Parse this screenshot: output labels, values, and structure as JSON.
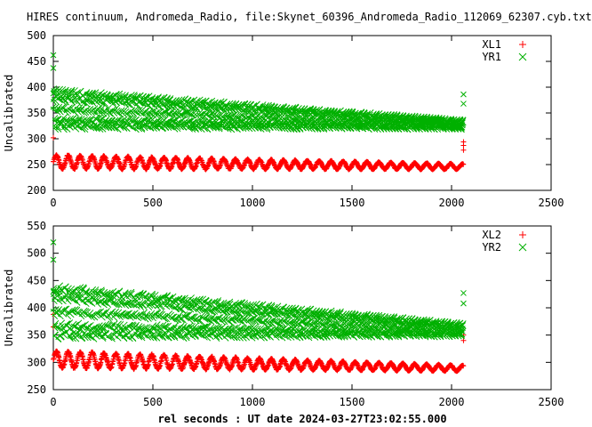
{
  "title": "HIRES continuum, Andromeda_Radio, file:Skynet_60396_Andromeda_Radio_112069_62307.cyb.txt",
  "chart_data": [
    {
      "type": "scatter",
      "ylabel": "Uncalibrated",
      "xlabel": "",
      "xlim": [
        0,
        2500
      ],
      "ylim": [
        200,
        500
      ],
      "xticks": [
        "0",
        "500",
        "1000",
        "1500",
        "2000",
        "2500"
      ],
      "yticks": [
        "200",
        "250",
        "300",
        "350",
        "400",
        "450",
        "500"
      ],
      "xtick_values": [
        0,
        500,
        1000,
        1500,
        2000,
        2500
      ],
      "ytick_values": [
        200,
        250,
        300,
        350,
        400,
        450,
        500
      ],
      "legend_position": "top-right",
      "series": [
        {
          "name": "XL1",
          "marker": "+",
          "color": "#ff0000",
          "x_range": [
            0,
            2060
          ],
          "oscillation_period": 60,
          "center_start": 255,
          "center_end": 246,
          "amplitude_start": 13,
          "amplitude_end": 5,
          "outliers": [
            [
              0,
              302
            ],
            [
              2060,
              294
            ],
            [
              2060,
              287
            ],
            [
              2060,
              278
            ]
          ]
        },
        {
          "name": "YR1",
          "marker": "x",
          "color": "#00b000",
          "x_range": [
            0,
            2060
          ],
          "oscillation_period": 15,
          "center_start": 355,
          "center_end": 325,
          "amplitude_start": 35,
          "amplitude_end": 7,
          "outliers": [
            [
              0,
              462
            ],
            [
              0,
              437
            ],
            [
              0,
              388
            ],
            [
              2060,
              386
            ],
            [
              2060,
              368
            ]
          ]
        }
      ]
    },
    {
      "type": "scatter",
      "ylabel": "Uncalibrated",
      "xlabel": "rel seconds : UT date 2024-03-27T23:02:55.000",
      "xlim": [
        0,
        2500
      ],
      "ylim": [
        250,
        550
      ],
      "xticks": [
        "0",
        "500",
        "1000",
        "1500",
        "2000",
        "2500"
      ],
      "yticks": [
        "250",
        "300",
        "350",
        "400",
        "450",
        "500",
        "550"
      ],
      "xtick_values": [
        0,
        500,
        1000,
        1500,
        2000,
        2500
      ],
      "ytick_values": [
        250,
        300,
        350,
        400,
        450,
        500,
        550
      ],
      "legend_position": "top-right",
      "series": [
        {
          "name": "XL2",
          "marker": "+",
          "color": "#ff0000",
          "x_range": [
            0,
            2060
          ],
          "oscillation_period": 60,
          "center_start": 305,
          "center_end": 289,
          "amplitude_start": 15,
          "amplitude_end": 5,
          "outliers": [
            [
              0,
              388
            ],
            [
              0,
              365
            ],
            [
              2060,
              350
            ],
            [
              2060,
              340
            ]
          ]
        },
        {
          "name": "YR2",
          "marker": "x",
          "color": "#00b000",
          "x_range": [
            0,
            2060
          ],
          "oscillation_period": 15,
          "center_start": 390,
          "center_end": 357,
          "amplitude_start": 45,
          "amplitude_end": 10,
          "outliers": [
            [
              0,
              520
            ],
            [
              0,
              488
            ],
            [
              0,
              430
            ],
            [
              2060,
              427
            ],
            [
              2060,
              408
            ]
          ]
        }
      ]
    }
  ]
}
